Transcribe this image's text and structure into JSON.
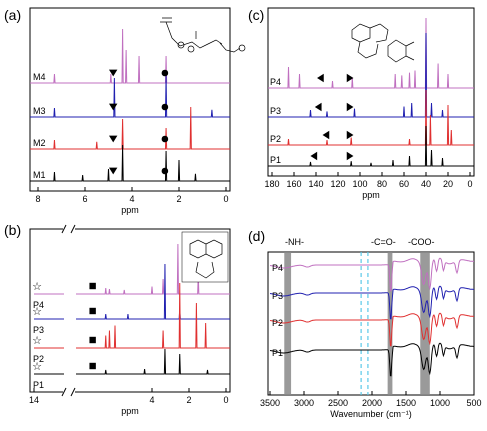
{
  "figure": {
    "panel_labels": [
      "(a)",
      "(b)",
      "(c)",
      "(d)"
    ]
  },
  "chart_data": [
    {
      "panel": "(a)",
      "type": "line",
      "xlabel": "ppm",
      "xlim": [
        8,
        0
      ],
      "xticks": [
        8,
        6,
        4,
        2,
        0
      ],
      "series": [
        {
          "name": "M4",
          "color": "#c070c0",
          "peaks": [
            [
              7.3,
              0.15
            ],
            [
              4.9,
              0.15
            ],
            [
              4.4,
              0.9
            ],
            [
              4.25,
              0.55
            ],
            [
              3.7,
              0.45
            ],
            [
              2.55,
              0.45
            ]
          ]
        },
        {
          "name": "M3",
          "color": "#2020b0",
          "peaks": [
            [
              7.3,
              0.15
            ],
            [
              4.75,
              0.65
            ],
            [
              2.55,
              0.7
            ],
            [
              0.6,
              0.12
            ]
          ]
        },
        {
          "name": "M2",
          "color": "#e03030",
          "peaks": [
            [
              7.3,
              0.15
            ],
            [
              5.5,
              0.12
            ],
            [
              4.4,
              0.5
            ],
            [
              2.55,
              0.35
            ],
            [
              1.5,
              0.7
            ]
          ]
        },
        {
          "name": "M1",
          "color": "#000000",
          "peaks": [
            [
              7.3,
              0.15
            ],
            [
              6.1,
              0.1
            ],
            [
              5.0,
              0.2
            ],
            [
              4.4,
              0.6
            ],
            [
              2.55,
              0.5
            ],
            [
              2.0,
              0.35
            ],
            [
              1.3,
              0.12
            ]
          ]
        }
      ],
      "markers": [
        {
          "series": "M4",
          "symbol": "triangle-down",
          "x": 4.8
        },
        {
          "series": "M4",
          "symbol": "circle",
          "x": 2.6
        },
        {
          "series": "M3",
          "symbol": "triangle-down",
          "x": 4.8
        },
        {
          "series": "M3",
          "symbol": "circle",
          "x": 2.6
        },
        {
          "series": "M2",
          "symbol": "triangle-down",
          "x": 4.8
        },
        {
          "series": "M2",
          "symbol": "circle",
          "x": 2.6
        },
        {
          "series": "M1",
          "symbol": "triangle-down",
          "x": 4.8
        },
        {
          "series": "M1",
          "symbol": "circle",
          "x": 2.6
        }
      ]
    },
    {
      "panel": "(b)",
      "type": "line",
      "xlabel": "ppm",
      "xlim": [
        14,
        0
      ],
      "xticks": [
        14,
        4,
        2,
        0
      ],
      "axis_break": true,
      "series": [
        {
          "name": "P4",
          "color": "#c070c0",
          "peaks": [
            [
              6.5,
              0.12
            ],
            [
              6.3,
              0.1
            ],
            [
              5.5,
              0.08
            ],
            [
              4.0,
              0.15
            ],
            [
              3.4,
              0.3
            ],
            [
              2.6,
              1.0
            ],
            [
              1.5,
              0.4
            ]
          ]
        },
        {
          "name": "P3",
          "color": "#2020b0",
          "peaks": [
            [
              6.5,
              0.1
            ],
            [
              5.3,
              0.1
            ],
            [
              3.3,
              1.1
            ],
            [
              2.5,
              0.2
            ]
          ]
        },
        {
          "name": "P2",
          "color": "#e03030",
          "peaks": [
            [
              6.5,
              0.25
            ],
            [
              6.3,
              0.35
            ],
            [
              6.0,
              0.45
            ],
            [
              3.4,
              0.35
            ],
            [
              2.5,
              1.3
            ],
            [
              1.6,
              0.9
            ],
            [
              1.1,
              0.5
            ]
          ]
        },
        {
          "name": "P1",
          "color": "#000000",
          "peaks": [
            [
              6.5,
              0.08
            ],
            [
              4.4,
              0.1
            ],
            [
              3.3,
              0.5
            ],
            [
              2.5,
              0.4
            ],
            [
              1.0,
              0.08
            ]
          ]
        }
      ],
      "markers": [
        {
          "series": "P4",
          "symbol": "star",
          "x": 14
        },
        {
          "series": "P4",
          "symbol": "square",
          "x": 7.1
        },
        {
          "series": "P3",
          "symbol": "star",
          "x": 14
        },
        {
          "series": "P3",
          "symbol": "square",
          "x": 7.1
        },
        {
          "series": "P2",
          "symbol": "star",
          "x": 14
        },
        {
          "series": "P2",
          "symbol": "square",
          "x": 7.1
        },
        {
          "series": "P1",
          "symbol": "star",
          "x": 14
        },
        {
          "series": "P1",
          "symbol": "square",
          "x": 7.1
        }
      ]
    },
    {
      "panel": "(c)",
      "type": "line",
      "xlabel": "ppm",
      "xlim": [
        180,
        0
      ],
      "xticks": [
        180,
        160,
        140,
        120,
        100,
        80,
        60,
        40,
        20,
        0
      ],
      "series": [
        {
          "name": "P4",
          "color": "#c070c0",
          "peaks": [
            [
              165,
              0.3
            ],
            [
              155,
              0.2
            ],
            [
              125,
              0.1
            ],
            [
              107,
              0.15
            ],
            [
              68,
              0.2
            ],
            [
              62,
              0.18
            ],
            [
              55,
              0.22
            ],
            [
              50,
              0.25
            ],
            [
              40,
              1.0
            ],
            [
              29,
              0.35
            ],
            [
              20,
              0.2
            ]
          ]
        },
        {
          "name": "P3",
          "color": "#2020b0",
          "peaks": [
            [
              145,
              0.1
            ],
            [
              130,
              0.08
            ],
            [
              105,
              0.12
            ],
            [
              60,
              0.15
            ],
            [
              53,
              0.2
            ],
            [
              40,
              1.2
            ],
            [
              35,
              0.2
            ],
            [
              25,
              0.1
            ]
          ]
        },
        {
          "name": "P2",
          "color": "#e03030",
          "peaks": [
            [
              165,
              0.12
            ],
            [
              130,
              0.1
            ],
            [
              108,
              0.15
            ],
            [
              55,
              0.12
            ],
            [
              40,
              1.1
            ],
            [
              36,
              0.6
            ],
            [
              20,
              0.8
            ],
            [
              17,
              0.3
            ]
          ]
        },
        {
          "name": "P1",
          "color": "#000000",
          "peaks": [
            [
              145,
              0.1
            ],
            [
              108,
              0.12
            ],
            [
              90,
              0.08
            ],
            [
              70,
              0.15
            ],
            [
              55,
              0.25
            ],
            [
              40,
              1.0
            ],
            [
              35,
              0.4
            ],
            [
              25,
              0.2
            ]
          ]
        }
      ],
      "markers": [
        {
          "series": "P4",
          "symbol": "triangle-left",
          "x": 136
        },
        {
          "series": "P4",
          "symbol": "triangle-right",
          "x": 109
        },
        {
          "series": "P3",
          "symbol": "triangle-left",
          "x": 138
        },
        {
          "series": "P3",
          "symbol": "triangle-right",
          "x": 109
        },
        {
          "series": "P2",
          "symbol": "triangle-left",
          "x": 131
        },
        {
          "series": "P2",
          "symbol": "triangle-right",
          "x": 109
        },
        {
          "series": "P1",
          "symbol": "triangle-left",
          "x": 142
        },
        {
          "series": "P1",
          "symbol": "triangle-right",
          "x": 109
        }
      ]
    },
    {
      "panel": "(d)",
      "type": "line",
      "xlabel": "Wavenumber (cm⁻¹)",
      "xlim": [
        3500,
        500
      ],
      "xticks": [
        3500,
        3000,
        2500,
        2000,
        1500,
        1000,
        500
      ],
      "annotations": [
        "-NH-",
        "-C=O-",
        "-COO-"
      ],
      "bands": [
        {
          "label": "-NH-",
          "range": [
            3290,
            3190
          ],
          "color": "#888888"
        },
        {
          "label": "dashed",
          "range": [
            2160,
            2060
          ],
          "color": "#5bc8e8",
          "style": "dashed"
        },
        {
          "label": "-C=O-",
          "range": [
            1770,
            1700
          ],
          "color": "#888888"
        },
        {
          "label": "-COO-",
          "range": [
            1290,
            1150
          ],
          "color": "#888888"
        }
      ],
      "series": [
        {
          "name": "P4",
          "color": "#c070c0"
        },
        {
          "name": "P3",
          "color": "#2020b0"
        },
        {
          "name": "P2",
          "color": "#e03030"
        },
        {
          "name": "P1",
          "color": "#000000"
        }
      ]
    }
  ]
}
